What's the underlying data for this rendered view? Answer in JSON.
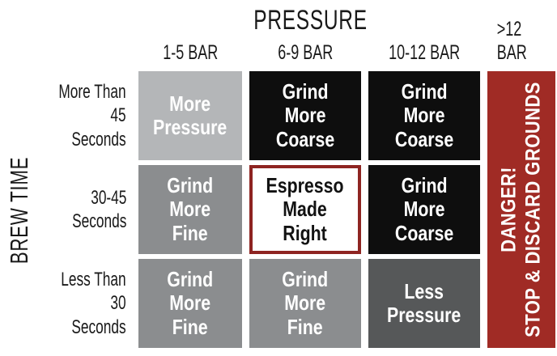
{
  "title": "PRESSURE",
  "y_axis_title": "BREW TIME",
  "columns": [
    "1-5 BAR",
    "6-9 BAR",
    "10-12 BAR",
    ">12 BAR"
  ],
  "rows": [
    {
      "label": "More Than\n45\nSeconds",
      "cells": [
        {
          "text": "More\nPressure"
        },
        {
          "text": "Grind\nMore\nCoarse"
        },
        {
          "text": "Grind\nMore\nCoarse"
        }
      ]
    },
    {
      "label": "30-45\nSeconds",
      "cells": [
        {
          "text": "Grind\nMore\nFine"
        },
        {
          "text": "Espresso\nMade\nRight"
        },
        {
          "text": "Grind\nMore\nCoarse"
        }
      ]
    },
    {
      "label": "Less Than\n30\nSeconds",
      "cells": [
        {
          "text": "Grind\nMore\nFine"
        },
        {
          "text": "Grind\nMore\nFine"
        },
        {
          "text": "Less\nPressure"
        }
      ]
    }
  ],
  "danger_cell": {
    "line1": "DANGER!",
    "line2": "STOP & DISCARD GROUNDS"
  },
  "colors": {
    "light_gray": "#b4b6b8",
    "medium_gray": "#8b8d8f",
    "dark_gray": "#565859",
    "black": "#0e0e0e",
    "danger_red": "#a02b25",
    "highlight_border_red": "#8e2421",
    "cell_text": "#ffffff",
    "label_text": "#191919"
  },
  "chart_data": {
    "type": "table",
    "title": "PRESSURE",
    "row_axis_label": "BREW TIME",
    "columns": [
      "1-5 BAR",
      "6-9 BAR",
      "10-12 BAR",
      ">12 BAR"
    ],
    "row_labels": [
      "More Than 45 Seconds",
      "30-45 Seconds",
      "Less Than 30 Seconds"
    ],
    "cells": [
      [
        "More Pressure",
        "Grind More Coarse",
        "Grind More Coarse",
        "DANGER! STOP & DISCARD GROUNDS"
      ],
      [
        "Grind More Fine",
        "Espresso Made Right",
        "Grind More Coarse",
        "DANGER! STOP & DISCARD GROUNDS"
      ],
      [
        "Grind More Fine",
        "Grind More Fine",
        "Less Pressure",
        "DANGER! STOP & DISCARD GROUNDS"
      ]
    ],
    "merged_cells": [
      {
        "column": ">12 BAR",
        "spans_rows": "all"
      }
    ],
    "highlighted_cell": {
      "row": "30-45 Seconds",
      "column": "6-9 BAR",
      "value": "Espresso Made Right"
    }
  }
}
